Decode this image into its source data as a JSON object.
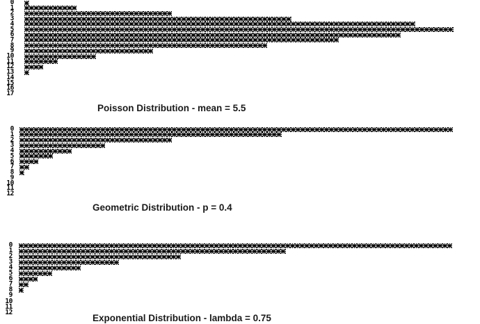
{
  "chart_data": [
    {
      "type": "bar",
      "orientation": "horizontal",
      "title": "Poisson Distribution - mean = 5.5",
      "categories": [
        "0",
        "1",
        "2",
        "3",
        "4",
        "5",
        "6",
        "7",
        "8",
        "9",
        "10",
        "11",
        "12",
        "13",
        "14",
        "15",
        "16",
        "17"
      ],
      "values": [
        1,
        11,
        31,
        56,
        82,
        90,
        79,
        66,
        51,
        27,
        15,
        7,
        4,
        1,
        0,
        0,
        0,
        0
      ]
    },
    {
      "type": "bar",
      "orientation": "horizontal",
      "title": "Geometric Distribution - p = 0.4",
      "categories": [
        "0",
        "1",
        "2",
        "3",
        "4",
        "5",
        "6",
        "7",
        "8",
        "9",
        "10",
        "11",
        "12"
      ],
      "values": [
        91,
        55,
        32,
        18,
        11,
        7,
        4,
        2,
        1,
        0,
        0,
        0,
        0
      ]
    },
    {
      "type": "bar",
      "orientation": "horizontal",
      "title": "Exponential Distribution - lambda = 0.75",
      "categories": [
        "0",
        "1",
        "2",
        "3",
        "4",
        "5",
        "6",
        "7",
        "8",
        "9",
        "10",
        "11",
        "12"
      ],
      "values": [
        91,
        56,
        34,
        21,
        13,
        7,
        4,
        2,
        1,
        0,
        0,
        0,
        0
      ]
    }
  ]
}
